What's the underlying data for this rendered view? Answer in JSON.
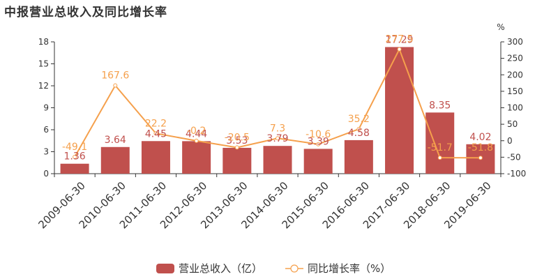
{
  "chart_data": {
    "type": "bar",
    "title": "中报营业总收入及同比增长率",
    "categories": [
      "2009-06-30",
      "2010-06-30",
      "2011-06-30",
      "2012-06-30",
      "2013-06-30",
      "2014-06-30",
      "2015-06-30",
      "2016-06-30",
      "2017-06-30",
      "2018-06-30",
      "2019-06-30"
    ],
    "series": [
      {
        "name": "营业总收入（亿）",
        "type": "bar",
        "color": "#c0504d",
        "values": [
          1.36,
          3.64,
          4.45,
          4.44,
          3.53,
          3.79,
          3.39,
          4.58,
          17.29,
          8.35,
          4.02
        ],
        "labels": [
          "1.36",
          "3.64",
          "4.45",
          "4.44",
          "3.53",
          "3.79",
          "3.39",
          "4.58",
          "17.29",
          "8.35",
          "4.02"
        ]
      },
      {
        "name": "同比增长率（%）",
        "type": "line",
        "color": "#f5a04c",
        "values": [
          -49.1,
          167.6,
          22.2,
          -0.2,
          -20.5,
          7.3,
          -10.6,
          35.2,
          277.5,
          -51.7,
          -51.8
        ],
        "labels": [
          "-49.1",
          "167.6",
          "22.2",
          "-0.2",
          "-20.5",
          "7.3",
          "-10.6",
          "35.2",
          "277.5",
          "-51.7",
          "-51.8"
        ]
      }
    ],
    "y_left": {
      "min": 0,
      "max": 18,
      "ticks": [
        "0",
        "3",
        "6",
        "9",
        "12",
        "15",
        "18"
      ]
    },
    "y_right": {
      "min": -100,
      "max": 300,
      "unit": "%",
      "ticks": [
        "-100",
        "-50",
        "0",
        "50",
        "100",
        "150",
        "200",
        "250",
        "300"
      ]
    },
    "grid": false,
    "legend_position": "bottom-center"
  }
}
